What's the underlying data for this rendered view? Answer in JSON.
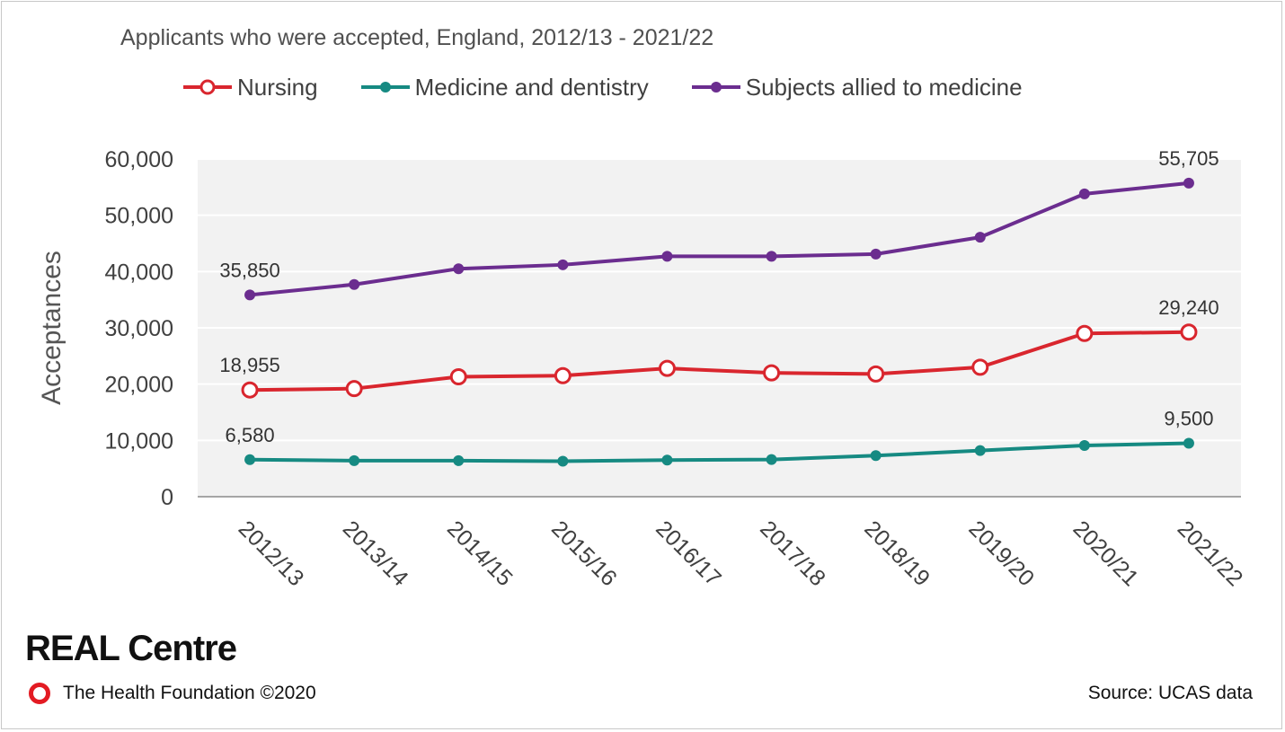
{
  "footer": {
    "brand": "REAL Centre",
    "foundation": "The Health Foundation ©2020",
    "source": "Source: UCAS data"
  },
  "colors": {
    "nursing": "#d9262e",
    "medicine": "#168a82",
    "allied": "#6b2d8f",
    "plot_background": "#f2f2f2",
    "brand_ring": "#e31b23"
  },
  "chart_data": {
    "type": "line",
    "title": "Applicants who were accepted, England, 2012/13 - 2021/22",
    "xlabel": "",
    "ylabel": "Acceptances",
    "ylim": [
      0,
      60000
    ],
    "yticks": [
      0,
      10000,
      20000,
      30000,
      40000,
      50000,
      60000
    ],
    "ytick_labels": [
      "0",
      "10,000",
      "20,000",
      "30,000",
      "40,000",
      "50,000",
      "60,000"
    ],
    "grid": true,
    "legend_position": "top",
    "categories": [
      "2012/13",
      "2013/14",
      "2014/15",
      "2015/16",
      "2016/17",
      "2017/18",
      "2018/19",
      "2019/20",
      "2020/21",
      "2021/22"
    ],
    "series": [
      {
        "name": "Nursing",
        "marker": "open-circle",
        "values": [
          18955,
          19200,
          21300,
          21500,
          22800,
          22000,
          21800,
          23000,
          29000,
          29240
        ],
        "labels": [
          {
            "index": 0,
            "text": "18,955"
          },
          {
            "index": 9,
            "text": "29,240"
          }
        ]
      },
      {
        "name": "Medicine and dentistry",
        "marker": "filled-circle",
        "values": [
          6580,
          6400,
          6400,
          6300,
          6500,
          6600,
          7300,
          8200,
          9100,
          9500
        ],
        "labels": [
          {
            "index": 0,
            "text": "6,580"
          },
          {
            "index": 9,
            "text": "9,500"
          }
        ]
      },
      {
        "name": "Subjects allied to medicine",
        "marker": "filled-circle",
        "values": [
          35850,
          37700,
          40500,
          41200,
          42700,
          42700,
          43100,
          46100,
          53800,
          55705
        ],
        "labels": [
          {
            "index": 0,
            "text": "35,850"
          },
          {
            "index": 9,
            "text": "55,705"
          }
        ]
      }
    ]
  }
}
